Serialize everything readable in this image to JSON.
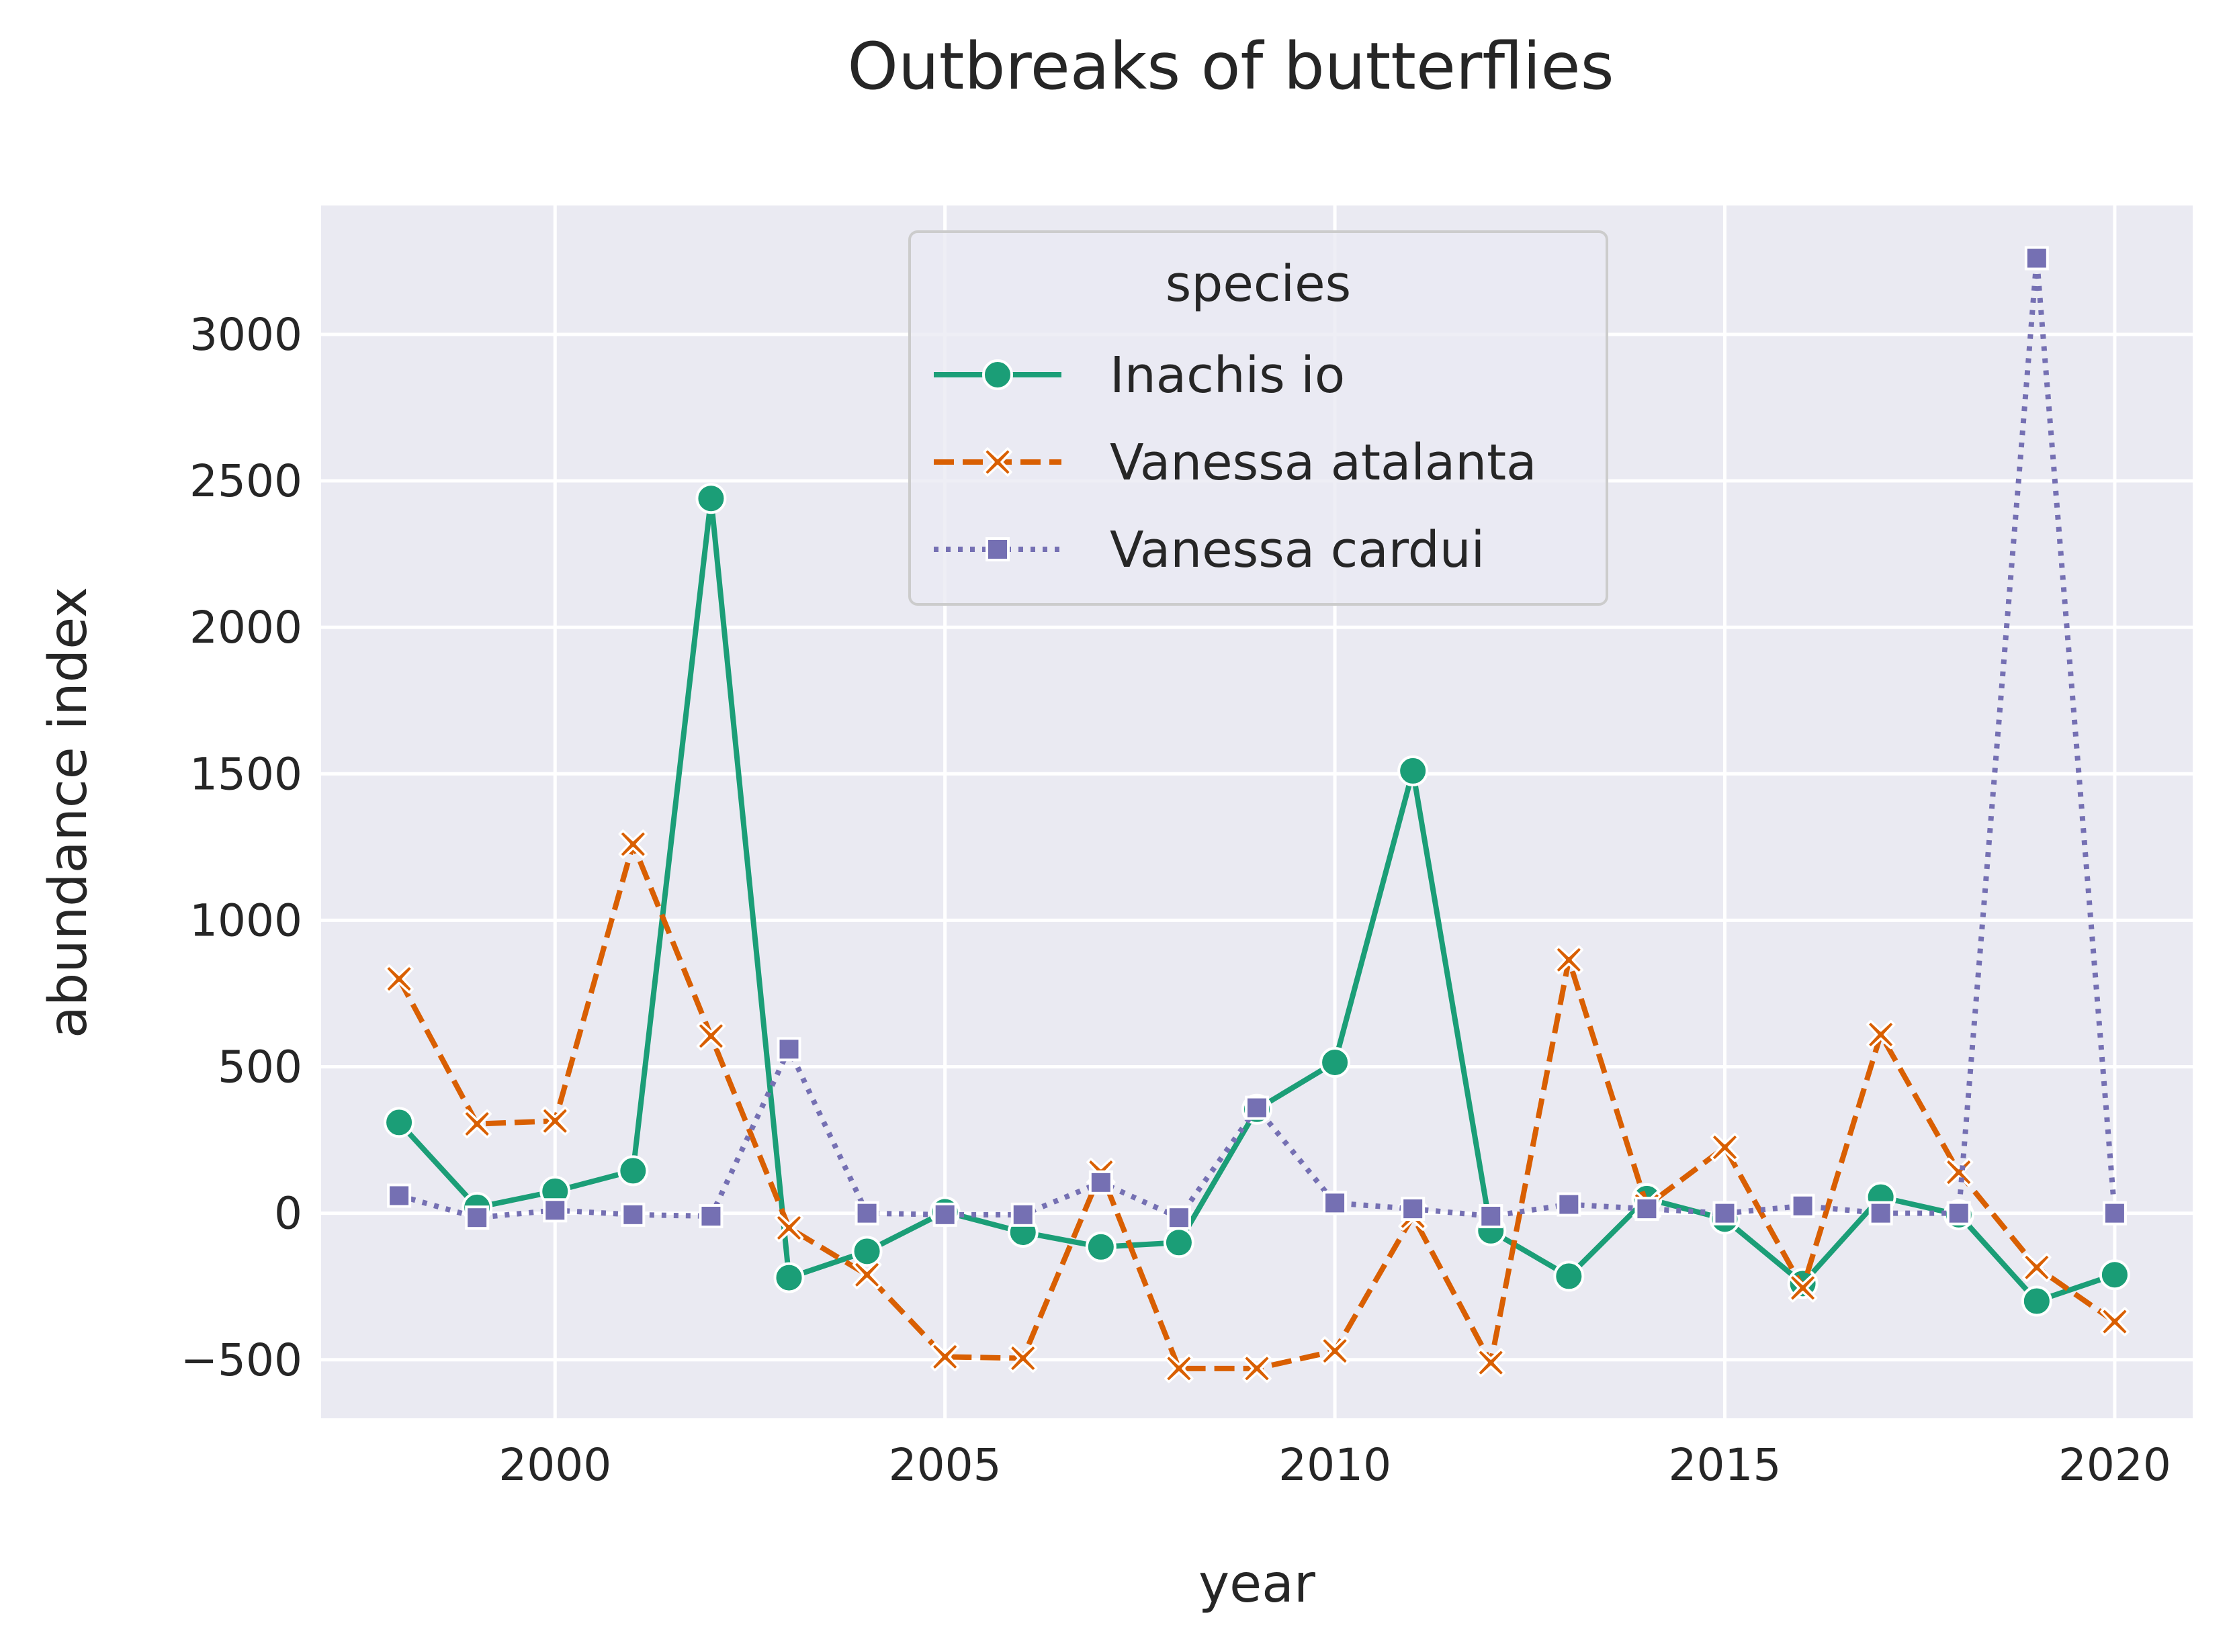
{
  "chart_data": {
    "type": "line",
    "title": "Outbreaks of butterflies",
    "xlabel": "year",
    "ylabel": "abundance index",
    "xlim": [
      1997,
      2021
    ],
    "ylim": [
      -700,
      3440
    ],
    "xticks": [
      2000,
      2005,
      2010,
      2015,
      2020
    ],
    "xtick_labels": [
      "2000",
      "2005",
      "2010",
      "2015",
      "2020"
    ],
    "yticks": [
      -500,
      0,
      500,
      1000,
      1500,
      2000,
      2500,
      3000
    ],
    "ytick_labels": [
      "−500",
      "0",
      "500",
      "1000",
      "1500",
      "2000",
      "2500",
      "3000"
    ],
    "grid": true,
    "legend": {
      "title": "species",
      "placement": "top-center"
    },
    "colors": {
      "background": "#EAEAF2",
      "grid": "#FFFFFF"
    },
    "x": [
      1998,
      1999,
      2000,
      2001,
      2002,
      2003,
      2004,
      2005,
      2006,
      2007,
      2008,
      2009,
      2010,
      2011,
      2012,
      2013,
      2014,
      2015,
      2016,
      2017,
      2018,
      2019,
      2020
    ],
    "series": [
      {
        "name": "Inachis io",
        "color": "#1B9E77",
        "dash": "solid",
        "marker": "circle",
        "values": [
          310,
          20,
          75,
          145,
          2440,
          -220,
          -130,
          5,
          -65,
          -115,
          -100,
          355,
          515,
          1510,
          -60,
          -215,
          50,
          -20,
          -240,
          55,
          -5,
          -300,
          -210
        ]
      },
      {
        "name": "Vanessa atalanta",
        "color": "#D95F02",
        "dash": "dashed",
        "marker": "x",
        "values": [
          800,
          305,
          315,
          1260,
          605,
          -50,
          -210,
          -490,
          -495,
          140,
          -530,
          -530,
          -470,
          -10,
          -510,
          865,
          25,
          225,
          -255,
          610,
          140,
          -185,
          -370
        ]
      },
      {
        "name": "Vanessa cardui",
        "color": "#7570B3",
        "dash": "dotted",
        "marker": "square",
        "values": [
          60,
          -15,
          10,
          -5,
          -10,
          560,
          0,
          -5,
          -5,
          105,
          -15,
          360,
          35,
          15,
          -10,
          30,
          15,
          0,
          25,
          0,
          0,
          3260,
          0
        ]
      }
    ]
  }
}
